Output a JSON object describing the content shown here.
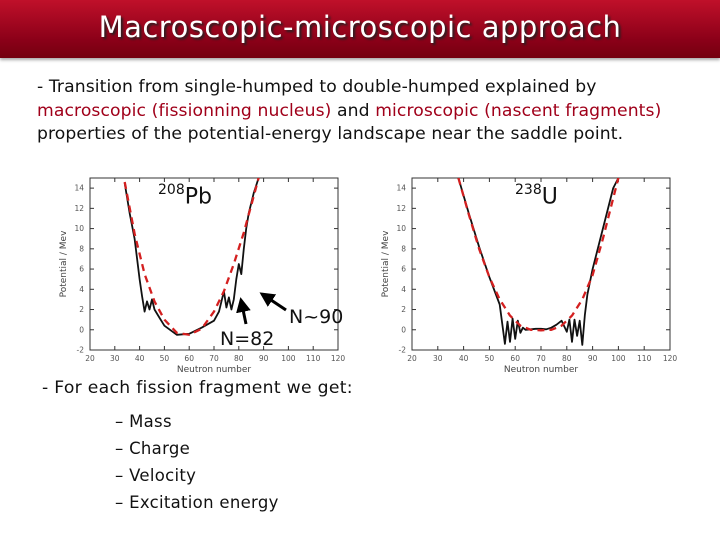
{
  "slide": {
    "title": "Macroscopic-microscopic approach",
    "intro": {
      "part1": "- Transition from single-humped to double-humped explained by",
      "macro_red": "macroscopic (fissionning nucleus)",
      "and": " and ",
      "micro_red": "microscopic (nascent fragments)",
      "part2": "properties of the potential-energy landscape near the saddle point."
    },
    "left_plot": {
      "isotope_mass": "208",
      "isotope_symbol": "Pb",
      "label_n82": "N=82",
      "label_n90": "N~90"
    },
    "right_plot": {
      "isotope_mass": "238",
      "isotope_symbol": "U"
    },
    "fragments": {
      "heading": "- For each fission fragment we get:",
      "items": [
        "– Mass",
        "– Charge",
        "– Velocity",
        "– Excitation energy"
      ]
    }
  },
  "chart_data": [
    {
      "type": "line",
      "xlabel": "Neutron number",
      "ylabel": "Potential / Mev",
      "xlim": [
        20,
        120
      ],
      "ylim": [
        -2,
        15
      ],
      "x_ticks": [
        20,
        30,
        40,
        50,
        60,
        70,
        80,
        90,
        100,
        110,
        120
      ],
      "y_ticks": [
        14,
        12,
        10,
        8,
        6,
        4,
        2,
        0,
        -2
      ],
      "series": [
        {
          "style": "solid-black",
          "x": [
            34,
            36,
            38,
            39,
            40,
            41,
            42,
            43,
            44,
            45,
            46,
            48,
            50,
            55,
            60,
            65,
            70,
            72,
            74,
            75,
            76,
            77,
            78,
            79,
            80,
            81,
            82,
            83,
            84,
            86,
            88
          ],
          "y": [
            14.5,
            11.5,
            9,
            7,
            5,
            3.3,
            1.8,
            2.8,
            2,
            3.0,
            2.0,
            1.2,
            0.4,
            -0.5,
            -0.4,
            0.2,
            0.9,
            1.8,
            3.8,
            2.2,
            3.2,
            2.0,
            3.0,
            5,
            6.5,
            5.5,
            8,
            10,
            11.5,
            13.5,
            15
          ]
        },
        {
          "style": "dashed-red",
          "x": [
            34,
            38,
            42,
            46,
            50,
            55,
            60,
            65,
            70,
            74,
            78,
            82,
            86,
            88
          ],
          "y": [
            14.6,
            9.5,
            5.5,
            2.8,
            1.0,
            -0.3,
            -0.5,
            0.1,
            1.8,
            3.8,
            6.5,
            9.6,
            13.2,
            15
          ]
        }
      ]
    },
    {
      "type": "line",
      "xlabel": "Neutron number",
      "ylabel": "Potential / Mev",
      "xlim": [
        20,
        120
      ],
      "ylim": [
        -2,
        15
      ],
      "x_ticks": [
        20,
        30,
        40,
        50,
        60,
        70,
        80,
        90,
        100,
        110,
        120
      ],
      "y_ticks": [
        14,
        12,
        10,
        8,
        6,
        4,
        2,
        0,
        -2
      ],
      "series": [
        {
          "style": "solid-black",
          "x": [
            38,
            42,
            46,
            50,
            54,
            56,
            57,
            58,
            59,
            60,
            61,
            62,
            63,
            64,
            66,
            68,
            70,
            72,
            74,
            76,
            78,
            80,
            81,
            82,
            83,
            84,
            85,
            86,
            87,
            88,
            90,
            94,
            98,
            100
          ],
          "y": [
            15,
            11.5,
            8.2,
            5.2,
            2.5,
            -1.4,
            0.8,
            -1.2,
            1.1,
            -0.9,
            0.9,
            -0.3,
            0.2,
            0.0,
            0.05,
            0.1,
            0.1,
            0.05,
            0.2,
            0.5,
            0.9,
            -0.2,
            1.0,
            -1.2,
            1.0,
            -0.6,
            0.9,
            -1.5,
            1.5,
            3.5,
            6,
            10,
            14,
            15
          ]
        },
        {
          "style": "dashed-red",
          "x": [
            38,
            42,
            46,
            50,
            54,
            58,
            62,
            66,
            70,
            74,
            78,
            82,
            86,
            90,
            94,
            98,
            100
          ],
          "y": [
            15,
            11.4,
            8.0,
            5.2,
            3.0,
            1.4,
            0.4,
            0.0,
            -0.05,
            0.0,
            0.4,
            1.4,
            3.0,
            5.4,
            9.0,
            13.0,
            15
          ]
        }
      ]
    }
  ]
}
